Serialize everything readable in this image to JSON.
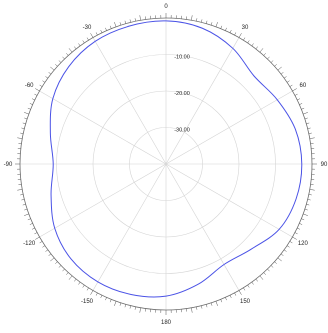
{
  "chart_data": {
    "type": "polar-line",
    "title": "",
    "theta_direction": "clockwise",
    "theta_zero": "top",
    "theta_tick_labels": [
      "0",
      "30",
      "60",
      "90",
      "120",
      "150",
      "180",
      "-150",
      "-120",
      "-90",
      "-60",
      "-30"
    ],
    "theta_tick_values": [
      0,
      30,
      60,
      90,
      120,
      150,
      180,
      -150,
      -120,
      -90,
      -60,
      -30
    ],
    "r_lim": [
      -40,
      0
    ],
    "r_ticks": [
      -10,
      -20,
      -30
    ],
    "r_tick_labels": [
      "-10.00",
      "-20.00",
      "-30.00"
    ],
    "grid": true,
    "series": [
      {
        "angles_deg": [
          -180,
          -165,
          -150,
          -135,
          -120,
          -105,
          -90,
          -75,
          -60,
          -45,
          -30,
          -15,
          0,
          15,
          30,
          45,
          60,
          75,
          90,
          105,
          120,
          135,
          150,
          165,
          180
        ],
        "r_db": [
          -3.8,
          -3.0,
          -2.7,
          -3.2,
          -4.8,
          -7.4,
          -9.1,
          -7.2,
          -4.2,
          -2.3,
          -1.2,
          -0.9,
          -0.8,
          -1.5,
          -3.4,
          -5.9,
          -4.8,
          -3.3,
          -2.8,
          -3.1,
          -4.2,
          -7.0,
          -8.2,
          -5.9,
          -3.8
        ],
        "color": "#4a52e6"
      }
    ]
  }
}
